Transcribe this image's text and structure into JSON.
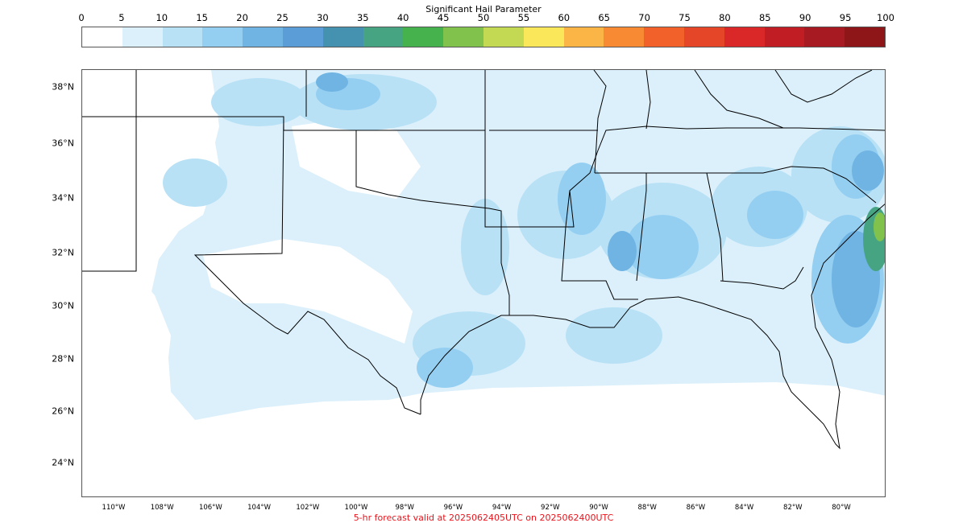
{
  "colorbar": {
    "title": "Significant Hail Parameter",
    "ticks": [
      "0",
      "5",
      "10",
      "15",
      "20",
      "25",
      "30",
      "35",
      "40",
      "45",
      "50",
      "55",
      "60",
      "65",
      "70",
      "75",
      "80",
      "85",
      "90",
      "95",
      "100"
    ],
    "colors": [
      "#ffffff",
      "#dcf0fb",
      "#b8e1f6",
      "#94cff2",
      "#6fb4e3",
      "#5b9dd6",
      "#4591b0",
      "#47a483",
      "#45b24d",
      "#80c24b",
      "#c3d853",
      "#fbe85a",
      "#fbb446",
      "#f78a33",
      "#f2612a",
      "#e54628",
      "#da2828",
      "#c11d24",
      "#a71a22",
      "#8e1518"
    ]
  },
  "map": {
    "lat_labels": [
      "38°N",
      "36°N",
      "34°N",
      "32°N",
      "30°N",
      "28°N",
      "26°N",
      "24°N"
    ],
    "lon_labels": [
      "110°W",
      "108°W",
      "106°W",
      "104°W",
      "102°W",
      "100°W",
      "98°W",
      "96°W",
      "94°W",
      "92°W",
      "90°W",
      "88°W",
      "86°W",
      "84°W",
      "82°W",
      "80°W"
    ],
    "caption": "5-hr forecast valid at 2025062405UTC on 2025062400UTC",
    "caption_color": "#e8141c"
  }
}
